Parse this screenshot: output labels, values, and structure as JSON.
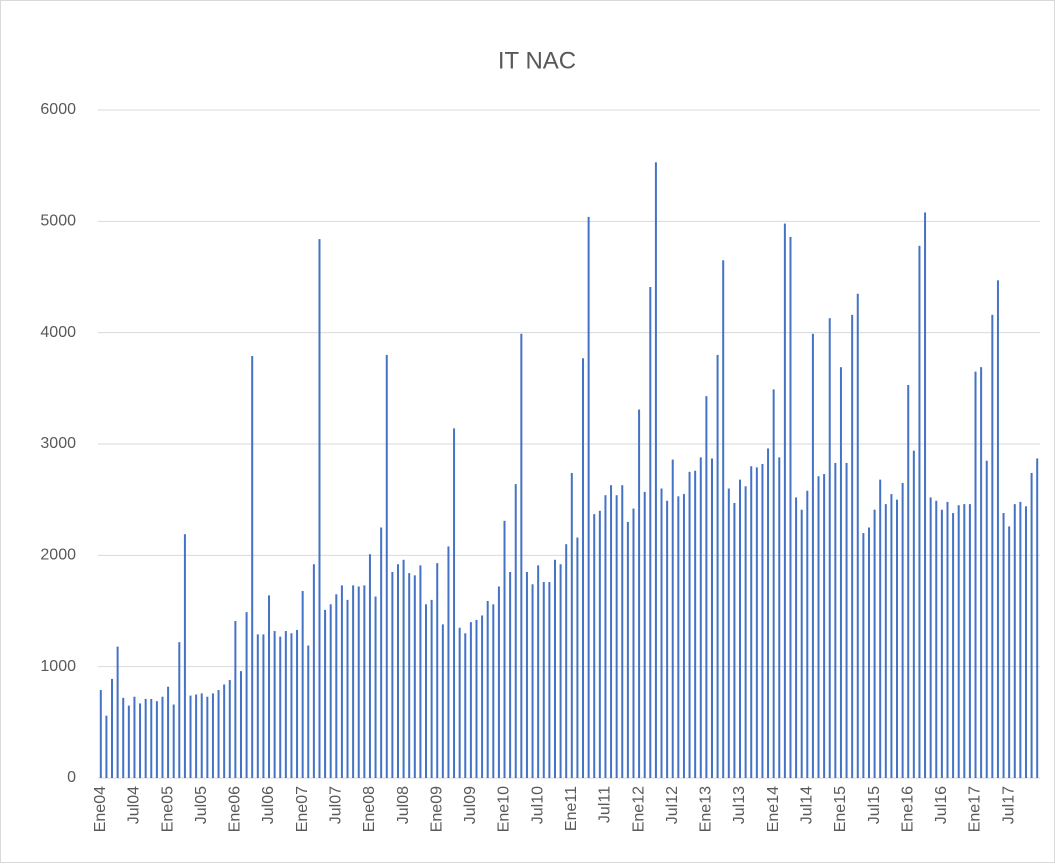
{
  "chart_data": {
    "type": "bar",
    "title": "IT NAC",
    "color": "#4472c4",
    "grid": true,
    "ylim": [
      0,
      6000
    ],
    "yticks": [
      0,
      1000,
      2000,
      3000,
      4000,
      5000,
      6000
    ],
    "categories": [
      "Ene04",
      null,
      null,
      null,
      null,
      null,
      "Jul04",
      null,
      null,
      null,
      null,
      null,
      "Ene05",
      null,
      null,
      null,
      null,
      null,
      "Jul05",
      null,
      null,
      null,
      null,
      null,
      "Ene06",
      null,
      null,
      null,
      null,
      null,
      "Jul06",
      null,
      null,
      null,
      null,
      null,
      "Ene07",
      null,
      null,
      null,
      null,
      null,
      "Jul07",
      null,
      null,
      null,
      null,
      null,
      "Ene08",
      null,
      null,
      null,
      null,
      null,
      "Jul08",
      null,
      null,
      null,
      null,
      null,
      "Ene09",
      null,
      null,
      null,
      null,
      null,
      "Jul09",
      null,
      null,
      null,
      null,
      null,
      "Ene10",
      null,
      null,
      null,
      null,
      null,
      "Jul10",
      null,
      null,
      null,
      null,
      null,
      "Ene11",
      null,
      null,
      null,
      null,
      null,
      "Jul11",
      null,
      null,
      null,
      null,
      null,
      "Ene12",
      null,
      null,
      null,
      null,
      null,
      "Jul12",
      null,
      null,
      null,
      null,
      null,
      "Ene13",
      null,
      null,
      null,
      null,
      null,
      "Jul13",
      null,
      null,
      null,
      null,
      null,
      "Ene14",
      null,
      null,
      null,
      null,
      null,
      "Jul14",
      null,
      null,
      null,
      null,
      null,
      "Ene15",
      null,
      null,
      null,
      null,
      null,
      "Jul15",
      null,
      null,
      null,
      null,
      null,
      "Ene16",
      null,
      null,
      null,
      null,
      null,
      "Jul16",
      null,
      null,
      null,
      null,
      null,
      "Ene17",
      null,
      null,
      null,
      null,
      null,
      "Jul17",
      null,
      null,
      null,
      null,
      null
    ],
    "values": [
      790,
      560,
      890,
      1180,
      720,
      650,
      730,
      670,
      710,
      710,
      690,
      730,
      820,
      660,
      1220,
      2190,
      740,
      750,
      760,
      730,
      760,
      790,
      840,
      880,
      1410,
      960,
      1490,
      3790,
      1290,
      1290,
      1640,
      1320,
      1270,
      1320,
      1300,
      1330,
      1680,
      1190,
      1920,
      4840,
      1510,
      1560,
      1650,
      1730,
      1600,
      1730,
      1720,
      1730,
      2010,
      1630,
      2250,
      3800,
      1850,
      1920,
      1960,
      1840,
      1820,
      1910,
      1560,
      1600,
      1930,
      1380,
      2080,
      3140,
      1350,
      1300,
      1400,
      1420,
      1460,
      1590,
      1560,
      1720,
      2310,
      1850,
      2640,
      3990,
      1850,
      1740,
      1910,
      1760,
      1760,
      1960,
      1920,
      2100,
      2740,
      2160,
      3770,
      5040,
      2370,
      2400,
      2540,
      2630,
      2540,
      2630,
      2300,
      2420,
      3310,
      2570,
      4410,
      5530,
      2600,
      2490,
      2860,
      2530,
      2550,
      2750,
      2760,
      2880,
      3430,
      2870,
      3800,
      4650,
      2600,
      2470,
      2680,
      2620,
      2800,
      2790,
      2820,
      2960,
      3490,
      2880,
      4980,
      4860,
      2520,
      2410,
      2580,
      3990,
      2710,
      2730,
      4130,
      2830,
      3690,
      2830,
      4160,
      4350,
      2200,
      2250,
      2410,
      2680,
      2460,
      2550,
      2500,
      2650,
      3530,
      2940,
      4780,
      5080,
      2520,
      2490,
      2410,
      2480,
      2380,
      2450,
      2460,
      2460,
      3650,
      3690,
      2850,
      4160,
      4470,
      2380,
      2260,
      2460,
      2480,
      2440,
      2740,
      2870
    ]
  }
}
